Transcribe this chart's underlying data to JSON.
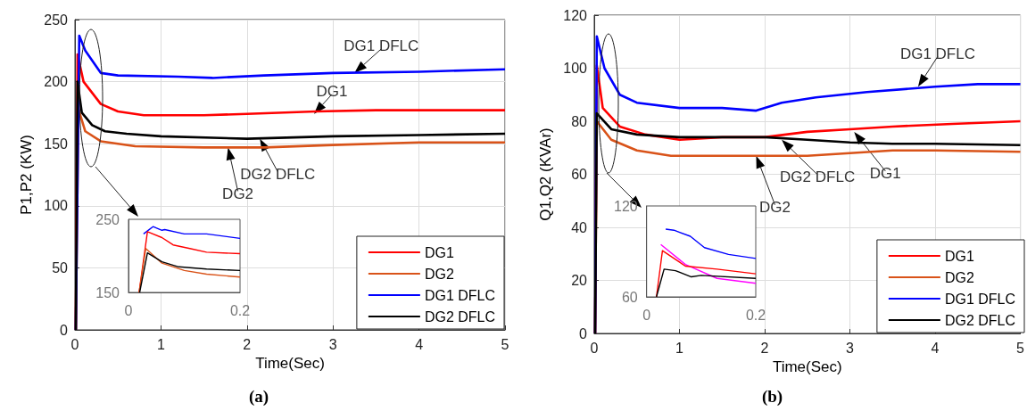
{
  "chart_data": [
    {
      "type": "line",
      "title": "(a)",
      "xlabel": "Time(Sec)",
      "ylabel": "P1,P2 (KW)",
      "xlim": [
        0,
        5
      ],
      "ylim": [
        0,
        250
      ],
      "xticks": [
        0,
        1,
        2,
        3,
        4,
        5
      ],
      "yticks": [
        0,
        50,
        100,
        150,
        200,
        250
      ],
      "grid": true,
      "legend": "bottom right",
      "series": [
        {
          "name": "DG1",
          "color": "#ff0000",
          "x": [
            0.01,
            0.03,
            0.1,
            0.3,
            0.5,
            0.8,
            1.5,
            2,
            2.8,
            3.5,
            5
          ],
          "values": [
            0,
            222,
            200,
            182,
            176,
            173,
            173,
            174,
            176,
            177,
            177
          ]
        },
        {
          "name": "DG2",
          "color": "#d95319",
          "x": [
            0.01,
            0.04,
            0.12,
            0.3,
            0.7,
            1.5,
            2.2,
            3,
            4,
            5
          ],
          "values": [
            0,
            178,
            160,
            152,
            148,
            147,
            147,
            149,
            151,
            151
          ]
        },
        {
          "name": "DG1 DFLC",
          "color": "#0000ff",
          "x": [
            0.01,
            0.05,
            0.12,
            0.3,
            0.5,
            1.2,
            1.6,
            2.2,
            3,
            4,
            5
          ],
          "values": [
            0,
            237,
            225,
            207,
            205,
            204,
            203,
            205,
            207,
            208,
            210
          ]
        },
        {
          "name": "DG2 DFLC",
          "color": "#000000",
          "x": [
            0.01,
            0.03,
            0.08,
            0.2,
            0.35,
            0.6,
            1,
            2,
            3,
            4,
            5
          ],
          "values": [
            0,
            200,
            175,
            165,
            160,
            158,
            156,
            154,
            156,
            157,
            158
          ]
        }
      ],
      "annotations": [
        {
          "text": "DG2",
          "x": 1.78,
          "y": 147
        },
        {
          "text": "DG2 DFLC",
          "x": 2.15,
          "y": 154
        },
        {
          "text": "DG1",
          "x": 2.78,
          "y": 174
        },
        {
          "text": "DG1 DFLC",
          "x": 3.25,
          "y": 207
        }
      ]
    },
    {
      "type": "line",
      "title": "(b)",
      "xlabel": "Time(Sec)",
      "ylabel": "Q1,Q2 (KVAr)",
      "xlim": [
        0,
        5
      ],
      "ylim": [
        0,
        120
      ],
      "xticks": [
        0,
        1,
        2,
        3,
        4,
        5
      ],
      "yticks": [
        0,
        20,
        40,
        60,
        80,
        100,
        120
      ],
      "grid": true,
      "legend": "bottom right",
      "series": [
        {
          "name": "DG1",
          "color": "#ff0000",
          "x": [
            0.01,
            0.03,
            0.1,
            0.3,
            0.6,
            1,
            1.5,
            2,
            2.5,
            3,
            3.5,
            4.2,
            5
          ],
          "values": [
            0,
            101,
            85,
            78,
            75,
            73,
            74,
            74,
            76,
            77,
            78,
            79,
            80
          ]
        },
        {
          "name": "DG2",
          "color": "#d95319",
          "x": [
            0.01,
            0.03,
            0.2,
            0.5,
            0.9,
            1.5,
            2,
            2.5,
            3,
            3.5,
            4,
            5
          ],
          "values": [
            0,
            80,
            73,
            69,
            67,
            67,
            67,
            67,
            68,
            69,
            69,
            68.5
          ]
        },
        {
          "name": "DG1 DFLC",
          "color": "#0000ff",
          "x": [
            0.01,
            0.03,
            0.12,
            0.3,
            0.5,
            1,
            1.5,
            1.9,
            2.2,
            2.6,
            3.2,
            4,
            4.5,
            5
          ],
          "values": [
            0,
            112,
            100,
            90,
            87,
            85,
            85,
            84,
            87,
            89,
            91,
            93,
            94,
            94
          ]
        },
        {
          "name": "DG2 DFLC",
          "color": "#000000",
          "x": [
            0.01,
            0.03,
            0.2,
            0.5,
            1,
            2,
            2.5,
            3,
            3.5,
            4,
            5
          ],
          "values": [
            0,
            83,
            77,
            75,
            74,
            74,
            73,
            72,
            71.5,
            71.5,
            71
          ]
        }
      ],
      "annotations": [
        {
          "text": "DG2",
          "x": 1.9,
          "y": 67
        },
        {
          "text": "DG2 DFLC",
          "x": 2.2,
          "y": 73
        },
        {
          "text": "DG1",
          "x": 3.05,
          "y": 76
        },
        {
          "text": "DG1 DFLC",
          "x": 3.8,
          "y": 93
        }
      ]
    },
    {
      "type": "line",
      "xlim": [
        0,
        0.2
      ],
      "ylim": [
        150,
        250
      ],
      "xticks": [
        0,
        0.2
      ],
      "yticks": [
        150,
        250
      ],
      "series": [
        {
          "color": "#0000ff",
          "x": [
            0.027,
            0.044,
            0.06,
            0.065,
            0.1,
            0.14,
            0.2
          ],
          "values": [
            230,
            240,
            235,
            236,
            230,
            230,
            224
          ]
        },
        {
          "color": "#ff0000",
          "x": [
            0.019,
            0.034,
            0.06,
            0.08,
            0.11,
            0.14,
            0.2
          ],
          "values": [
            150,
            233,
            225,
            215,
            210,
            205,
            203
          ]
        },
        {
          "color": "#d95319",
          "x": [
            0.019,
            0.031,
            0.06,
            0.1,
            0.14,
            0.2
          ],
          "values": [
            150,
            210,
            190,
            180,
            175,
            171
          ]
        },
        {
          "color": "#000000",
          "x": [
            0.02,
            0.034,
            0.06,
            0.09,
            0.14,
            0.2
          ],
          "values": [
            150,
            204,
            192,
            185,
            182,
            180
          ]
        }
      ]
    },
    {
      "type": "line",
      "xlim": [
        0,
        0.2
      ],
      "ylim": [
        60,
        120
      ],
      "xticks": [
        0,
        0.2
      ],
      "yticks": [
        60,
        120
      ],
      "series": [
        {
          "color": "#0000ff",
          "x": [
            0.035,
            0.05,
            0.08,
            0.106,
            0.15,
            0.2
          ],
          "values": [
            104.7,
            104,
            100,
            92.5,
            88,
            85.4
          ]
        },
        {
          "color": "#ff00ff",
          "x": [
            0.026,
            0.071,
            0.129,
            0.2
          ],
          "values": [
            94.6,
            81.4,
            72.2,
            69
          ]
        },
        {
          "color": "#ff0000",
          "x": [
            0.018,
            0.029,
            0.071,
            0.129,
            0.2
          ],
          "values": [
            60,
            90.5,
            80.3,
            78.3,
            75.2
          ]
        },
        {
          "color": "#000000",
          "x": [
            0.018,
            0.032,
            0.053,
            0.082,
            0.1,
            0.2
          ],
          "values": [
            60,
            78.3,
            77.3,
            73.2,
            74.2,
            72.2
          ]
        }
      ]
    }
  ]
}
